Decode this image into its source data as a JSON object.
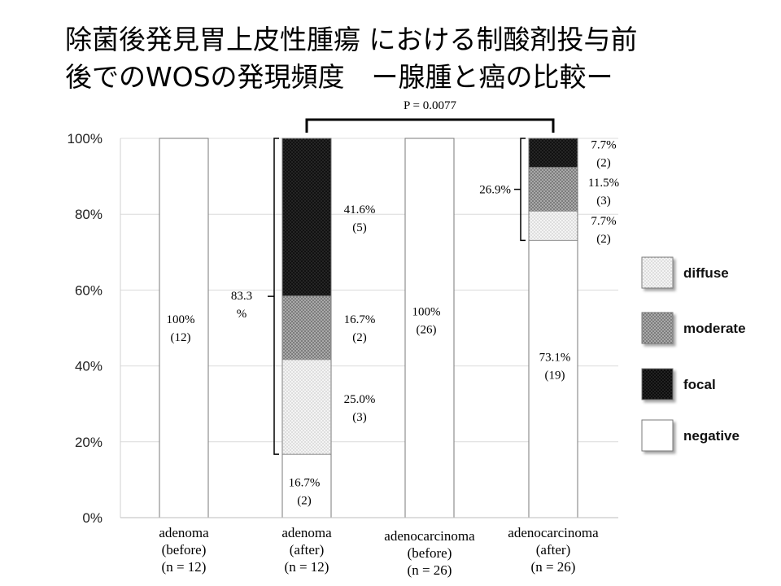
{
  "title": {
    "line1": "除菌後発見胃上皮性腫瘍 における制酸剤投与前",
    "line2": "後でのWOSの発現頻度　ー腺腫と癌の比較ー"
  },
  "chart_data": {
    "type": "bar",
    "stacked": true,
    "ylim": [
      0,
      100
    ],
    "y_unit": "%",
    "yticks": [
      "0%",
      "20%",
      "40%",
      "60%",
      "80%",
      "100%"
    ],
    "grid": true,
    "legend_position": "right",
    "categories": [
      {
        "label_lines": [
          "adenoma",
          "(before)",
          "(n = 12)"
        ]
      },
      {
        "label_lines": [
          "adenoma",
          "(after)",
          "(n = 12)"
        ]
      },
      {
        "label_lines": [
          "adenocarcinoma",
          "(before)",
          "(n = 26)"
        ]
      },
      {
        "label_lines": [
          "adenocarcinoma",
          "(after)",
          "(n = 26)"
        ]
      }
    ],
    "series": [
      {
        "name": "negative",
        "values": [
          100,
          16.7,
          100,
          73.1
        ],
        "fill": "#ffffff"
      },
      {
        "name": "diffuse",
        "values": [
          0,
          25.0,
          0,
          7.7
        ],
        "fill": "#f2f2f2"
      },
      {
        "name": "moderate",
        "values": [
          0,
          16.7,
          0,
          11.5
        ],
        "fill": "#9a9a9a"
      },
      {
        "name": "focal",
        "values": [
          0,
          41.6,
          0,
          7.7
        ],
        "fill": "#141414"
      }
    ],
    "legend_order": [
      "diffuse",
      "moderate",
      "focal",
      "negative"
    ],
    "segment_labels": [
      {
        "bar": 0,
        "value": 50,
        "lines": [
          "100%",
          "(12)"
        ]
      },
      {
        "bar": 1,
        "value": 79,
        "lines": [
          "41.6%",
          "(5)"
        ]
      },
      {
        "bar": 1,
        "value": 50,
        "lines": [
          "16.7%",
          "(2)"
        ]
      },
      {
        "bar": 1,
        "value": 29,
        "lines": [
          "25.0%",
          "(3)"
        ]
      },
      {
        "bar": 1,
        "value": 7,
        "lines": [
          "16.7%",
          "(2)"
        ]
      },
      {
        "bar": 2,
        "value": 52,
        "lines": [
          "100%",
          "(26)"
        ]
      },
      {
        "bar": 3,
        "value": 96,
        "lines": [
          "7.7%",
          "(2)"
        ]
      },
      {
        "bar": 3,
        "value": 86,
        "lines": [
          "11.5%",
          "(3)"
        ]
      },
      {
        "bar": 3,
        "value": 76,
        "lines": [
          "7.7%",
          "(2)"
        ]
      },
      {
        "bar": 3,
        "value": 40,
        "lines": [
          "73.1%",
          "(19)"
        ]
      }
    ],
    "bracket_labels": [
      {
        "bar": 1,
        "from": 16.7,
        "to": 100,
        "lines": [
          "83.3",
          "%"
        ]
      },
      {
        "bar": 3,
        "from": 73.1,
        "to": 100,
        "lines": [
          "26.9%"
        ]
      }
    ],
    "comparison": {
      "from_bar": 1,
      "to_bar": 3,
      "label": "P = 0.0077"
    }
  }
}
